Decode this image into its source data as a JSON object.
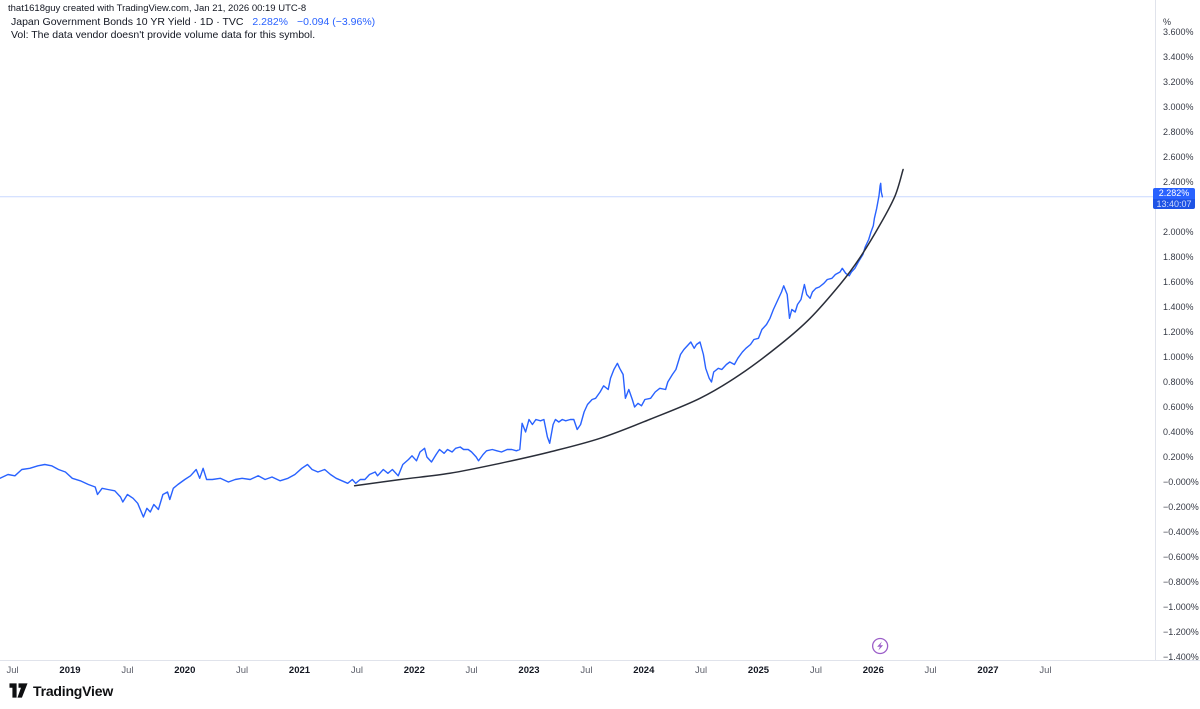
{
  "attribution": "that1618guy created with TradingView.com, Jan 21, 2026 00:19 UTC-8",
  "legend": {
    "symbol_title": "Japan Government Bonds 10 YR Yield · 1D · TVC",
    "last_value": "2.282%",
    "change": "−0.094 (−3.96%)",
    "volume_note": "Vol: The data vendor doesn't provide volume data for this symbol."
  },
  "price_label": {
    "value": "2.282%",
    "countdown": "13:40:07"
  },
  "price_scale": {
    "unit": "%",
    "ticks": [
      {
        "v": 3.6,
        "label": "3.600%"
      },
      {
        "v": 3.4,
        "label": "3.400%"
      },
      {
        "v": 3.2,
        "label": "3.200%"
      },
      {
        "v": 3.0,
        "label": "3.000%"
      },
      {
        "v": 2.8,
        "label": "2.800%"
      },
      {
        "v": 2.6,
        "label": "2.600%"
      },
      {
        "v": 2.4,
        "label": "2.400%"
      },
      {
        "v": 2.0,
        "label": "2.000%"
      },
      {
        "v": 1.8,
        "label": "1.800%"
      },
      {
        "v": 1.6,
        "label": "1.600%"
      },
      {
        "v": 1.4,
        "label": "1.400%"
      },
      {
        "v": 1.2,
        "label": "1.200%"
      },
      {
        "v": 1.0,
        "label": "1.000%"
      },
      {
        "v": 0.8,
        "label": "0.800%"
      },
      {
        "v": 0.6,
        "label": "0.600%"
      },
      {
        "v": 0.4,
        "label": "0.400%"
      },
      {
        "v": 0.2,
        "label": "0.200%"
      },
      {
        "v": 0.0,
        "label": "−0.000%"
      },
      {
        "v": -0.2,
        "label": "−0.200%"
      },
      {
        "v": -0.4,
        "label": "−0.400%"
      },
      {
        "v": -0.6,
        "label": "−0.600%"
      },
      {
        "v": -0.8,
        "label": "−0.800%"
      },
      {
        "v": -1.0,
        "label": "−1.000%"
      },
      {
        "v": -1.2,
        "label": "−1.200%"
      },
      {
        "v": -1.4,
        "label": "−1.400%"
      }
    ]
  },
  "time_scale": {
    "labels": [
      {
        "t": 2018.5,
        "label": "Jul",
        "bold": false
      },
      {
        "t": 2019.0,
        "label": "2019",
        "bold": true
      },
      {
        "t": 2019.5,
        "label": "Jul",
        "bold": false
      },
      {
        "t": 2020.0,
        "label": "2020",
        "bold": true
      },
      {
        "t": 2020.5,
        "label": "Jul",
        "bold": false
      },
      {
        "t": 2021.0,
        "label": "2021",
        "bold": true
      },
      {
        "t": 2021.5,
        "label": "Jul",
        "bold": false
      },
      {
        "t": 2022.0,
        "label": "2022",
        "bold": true
      },
      {
        "t": 2022.5,
        "label": "Jul",
        "bold": false
      },
      {
        "t": 2023.0,
        "label": "2023",
        "bold": true
      },
      {
        "t": 2023.5,
        "label": "Jul",
        "bold": false
      },
      {
        "t": 2024.0,
        "label": "2024",
        "bold": true
      },
      {
        "t": 2024.5,
        "label": "Jul",
        "bold": false
      },
      {
        "t": 2025.0,
        "label": "2025",
        "bold": true
      },
      {
        "t": 2025.5,
        "label": "Jul",
        "bold": false
      },
      {
        "t": 2026.0,
        "label": "2026",
        "bold": true
      },
      {
        "t": 2026.5,
        "label": "Jul",
        "bold": false
      },
      {
        "t": 2027.0,
        "label": "2027",
        "bold": true
      },
      {
        "t": 2027.5,
        "label": "Jul",
        "bold": false
      }
    ],
    "event_marker": {
      "t": 2026.06,
      "icon": "lightning-bolt"
    }
  },
  "footer": {
    "logo_text": "TradingView"
  },
  "colors": {
    "accent": "#2962FF",
    "trend_curve": "#2a2e39",
    "axis_line": "#e0e3eb",
    "text_primary": "#131722",
    "text_secondary": "#5d606b",
    "event_icon": "#9c5fc9",
    "price_label_bg": "#2962FF",
    "countdown_bg": "#1e53e5"
  },
  "chart_data": {
    "type": "line",
    "title": "Japan Government Bonds 10 YR Yield",
    "timeframe": "1D",
    "exchange": "TVC",
    "last_value_pct": 2.282,
    "change_abs": -0.094,
    "change_pct": -3.96,
    "ylabel": "%",
    "ylim": [
      -1.4,
      3.6
    ],
    "y_step": 0.2,
    "xlim_years": [
      2018.39,
      2028.45
    ],
    "grid": false,
    "legend_position": "top-left",
    "series": [
      {
        "name": "JP 10Y yield (%)",
        "style": "jagged-line",
        "color": "#2962FF",
        "points": [
          [
            2018.39,
            0.03
          ],
          [
            2018.46,
            0.06
          ],
          [
            2018.52,
            0.05
          ],
          [
            2018.58,
            0.1
          ],
          [
            2018.65,
            0.11
          ],
          [
            2018.72,
            0.13
          ],
          [
            2018.78,
            0.14
          ],
          [
            2018.84,
            0.13
          ],
          [
            2018.9,
            0.1
          ],
          [
            2018.96,
            0.08
          ],
          [
            2019.02,
            0.03
          ],
          [
            2019.09,
            0.01
          ],
          [
            2019.16,
            -0.02
          ],
          [
            2019.22,
            -0.04
          ],
          [
            2019.24,
            -0.1
          ],
          [
            2019.28,
            -0.05
          ],
          [
            2019.33,
            -0.06
          ],
          [
            2019.39,
            -0.07
          ],
          [
            2019.44,
            -0.12
          ],
          [
            2019.46,
            -0.16
          ],
          [
            2019.5,
            -0.1
          ],
          [
            2019.55,
            -0.13
          ],
          [
            2019.59,
            -0.17
          ],
          [
            2019.64,
            -0.28
          ],
          [
            2019.67,
            -0.21
          ],
          [
            2019.7,
            -0.24
          ],
          [
            2019.73,
            -0.18
          ],
          [
            2019.77,
            -0.22
          ],
          [
            2019.81,
            -0.1
          ],
          [
            2019.85,
            -0.08
          ],
          [
            2019.87,
            -0.14
          ],
          [
            2019.9,
            -0.05
          ],
          [
            2019.94,
            -0.02
          ],
          [
            2020.0,
            0.02
          ],
          [
            2020.05,
            0.05
          ],
          [
            2020.1,
            0.1
          ],
          [
            2020.13,
            0.03
          ],
          [
            2020.16,
            0.11
          ],
          [
            2020.19,
            0.02
          ],
          [
            2020.24,
            0.02
          ],
          [
            2020.31,
            0.03
          ],
          [
            2020.38,
            0.0
          ],
          [
            2020.44,
            0.02
          ],
          [
            2020.5,
            0.03
          ],
          [
            2020.57,
            0.02
          ],
          [
            2020.64,
            0.05
          ],
          [
            2020.7,
            0.02
          ],
          [
            2020.76,
            0.04
          ],
          [
            2020.83,
            0.01
          ],
          [
            2020.9,
            0.03
          ],
          [
            2020.96,
            0.06
          ],
          [
            2021.02,
            0.11
          ],
          [
            2021.07,
            0.14
          ],
          [
            2021.11,
            0.1
          ],
          [
            2021.16,
            0.08
          ],
          [
            2021.22,
            0.1
          ],
          [
            2021.27,
            0.06
          ],
          [
            2021.32,
            0.03
          ],
          [
            2021.37,
            0.01
          ],
          [
            2021.42,
            -0.01
          ],
          [
            2021.46,
            0.02
          ],
          [
            2021.49,
            -0.01
          ],
          [
            2021.53,
            0.02
          ],
          [
            2021.57,
            0.02
          ],
          [
            2021.61,
            0.06
          ],
          [
            2021.66,
            0.08
          ],
          [
            2021.68,
            0.05
          ],
          [
            2021.73,
            0.1
          ],
          [
            2021.77,
            0.07
          ],
          [
            2021.81,
            0.1
          ],
          [
            2021.86,
            0.05
          ],
          [
            2021.9,
            0.14
          ],
          [
            2021.95,
            0.18
          ],
          [
            2021.98,
            0.21
          ],
          [
            2022.02,
            0.17
          ],
          [
            2022.05,
            0.24
          ],
          [
            2022.09,
            0.27
          ],
          [
            2022.11,
            0.2
          ],
          [
            2022.15,
            0.16
          ],
          [
            2022.19,
            0.22
          ],
          [
            2022.22,
            0.26
          ],
          [
            2022.26,
            0.23
          ],
          [
            2022.29,
            0.26
          ],
          [
            2022.33,
            0.24
          ],
          [
            2022.36,
            0.27
          ],
          [
            2022.4,
            0.28
          ],
          [
            2022.43,
            0.26
          ],
          [
            2022.47,
            0.26
          ],
          [
            2022.5,
            0.24
          ],
          [
            2022.54,
            0.2
          ],
          [
            2022.56,
            0.17
          ],
          [
            2022.6,
            0.22
          ],
          [
            2022.63,
            0.25
          ],
          [
            2022.68,
            0.26
          ],
          [
            2022.72,
            0.25
          ],
          [
            2022.76,
            0.24
          ],
          [
            2022.81,
            0.26
          ],
          [
            2022.85,
            0.26
          ],
          [
            2022.89,
            0.25
          ],
          [
            2022.92,
            0.26
          ],
          [
            2022.94,
            0.47
          ],
          [
            2022.97,
            0.4
          ],
          [
            2023.0,
            0.5
          ],
          [
            2023.03,
            0.46
          ],
          [
            2023.06,
            0.5
          ],
          [
            2023.1,
            0.49
          ],
          [
            2023.13,
            0.5
          ],
          [
            2023.16,
            0.36
          ],
          [
            2023.18,
            0.31
          ],
          [
            2023.21,
            0.46
          ],
          [
            2023.23,
            0.5
          ],
          [
            2023.26,
            0.48
          ],
          [
            2023.29,
            0.5
          ],
          [
            2023.32,
            0.49
          ],
          [
            2023.36,
            0.5
          ],
          [
            2023.39,
            0.5
          ],
          [
            2023.42,
            0.42
          ],
          [
            2023.45,
            0.46
          ],
          [
            2023.48,
            0.56
          ],
          [
            2023.51,
            0.62
          ],
          [
            2023.55,
            0.66
          ],
          [
            2023.58,
            0.67
          ],
          [
            2023.62,
            0.72
          ],
          [
            2023.65,
            0.77
          ],
          [
            2023.69,
            0.74
          ],
          [
            2023.71,
            0.83
          ],
          [
            2023.74,
            0.9
          ],
          [
            2023.77,
            0.95
          ],
          [
            2023.79,
            0.91
          ],
          [
            2023.82,
            0.86
          ],
          [
            2023.84,
            0.67
          ],
          [
            2023.87,
            0.74
          ],
          [
            2023.9,
            0.66
          ],
          [
            2023.92,
            0.6
          ],
          [
            2023.95,
            0.63
          ],
          [
            2023.98,
            0.61
          ],
          [
            2024.01,
            0.66
          ],
          [
            2024.06,
            0.67
          ],
          [
            2024.1,
            0.72
          ],
          [
            2024.14,
            0.75
          ],
          [
            2024.19,
            0.74
          ],
          [
            2024.21,
            0.8
          ],
          [
            2024.25,
            0.86
          ],
          [
            2024.28,
            0.9
          ],
          [
            2024.32,
            1.02
          ],
          [
            2024.35,
            1.06
          ],
          [
            2024.39,
            1.1
          ],
          [
            2024.41,
            1.12
          ],
          [
            2024.44,
            1.07
          ],
          [
            2024.46,
            1.1
          ],
          [
            2024.49,
            1.12
          ],
          [
            2024.52,
            1.02
          ],
          [
            2024.54,
            0.91
          ],
          [
            2024.57,
            0.83
          ],
          [
            2024.59,
            0.8
          ],
          [
            2024.61,
            0.88
          ],
          [
            2024.65,
            0.91
          ],
          [
            2024.68,
            0.9
          ],
          [
            2024.72,
            0.94
          ],
          [
            2024.75,
            0.96
          ],
          [
            2024.79,
            0.94
          ],
          [
            2024.82,
            0.99
          ],
          [
            2024.86,
            1.04
          ],
          [
            2024.89,
            1.07
          ],
          [
            2024.93,
            1.1
          ],
          [
            2024.96,
            1.14
          ],
          [
            2025.0,
            1.15
          ],
          [
            2025.03,
            1.22
          ],
          [
            2025.07,
            1.26
          ],
          [
            2025.1,
            1.31
          ],
          [
            2025.13,
            1.38
          ],
          [
            2025.17,
            1.46
          ],
          [
            2025.2,
            1.52
          ],
          [
            2025.22,
            1.57
          ],
          [
            2025.25,
            1.5
          ],
          [
            2025.27,
            1.31
          ],
          [
            2025.29,
            1.38
          ],
          [
            2025.32,
            1.36
          ],
          [
            2025.34,
            1.42
          ],
          [
            2025.37,
            1.46
          ],
          [
            2025.4,
            1.58
          ],
          [
            2025.42,
            1.5
          ],
          [
            2025.45,
            1.47
          ],
          [
            2025.47,
            1.52
          ],
          [
            2025.5,
            1.55
          ],
          [
            2025.53,
            1.56
          ],
          [
            2025.57,
            1.59
          ],
          [
            2025.6,
            1.62
          ],
          [
            2025.64,
            1.63
          ],
          [
            2025.67,
            1.66
          ],
          [
            2025.71,
            1.68
          ],
          [
            2025.73,
            1.71
          ],
          [
            2025.76,
            1.67
          ],
          [
            2025.79,
            1.65
          ],
          [
            2025.81,
            1.68
          ],
          [
            2025.84,
            1.71
          ],
          [
            2025.87,
            1.76
          ],
          [
            2025.89,
            1.79
          ],
          [
            2025.91,
            1.82
          ],
          [
            2025.93,
            1.88
          ],
          [
            2025.96,
            1.94
          ],
          [
            2025.98,
            2.0
          ],
          [
            2026.0,
            2.05
          ],
          [
            2026.01,
            2.11
          ],
          [
            2026.03,
            2.19
          ],
          [
            2026.05,
            2.29
          ],
          [
            2026.06,
            2.37
          ],
          [
            2026.065,
            2.39
          ],
          [
            2026.07,
            2.32
          ],
          [
            2026.08,
            2.282
          ]
        ]
      },
      {
        "name": "exponential trend curve (drawing)",
        "style": "smooth-curve",
        "color": "#2a2e39",
        "points": [
          [
            2021.48,
            -0.03
          ],
          [
            2021.88,
            0.02
          ],
          [
            2022.31,
            0.07
          ],
          [
            2022.75,
            0.15
          ],
          [
            2023.18,
            0.24
          ],
          [
            2023.62,
            0.35
          ],
          [
            2024.05,
            0.5
          ],
          [
            2024.49,
            0.67
          ],
          [
            2024.84,
            0.86
          ],
          [
            2025.19,
            1.1
          ],
          [
            2025.45,
            1.31
          ],
          [
            2025.71,
            1.58
          ],
          [
            2025.88,
            1.79
          ],
          [
            2026.06,
            2.06
          ],
          [
            2026.19,
            2.29
          ],
          [
            2026.26,
            2.5
          ]
        ]
      }
    ],
    "price_line_value": 2.282
  }
}
